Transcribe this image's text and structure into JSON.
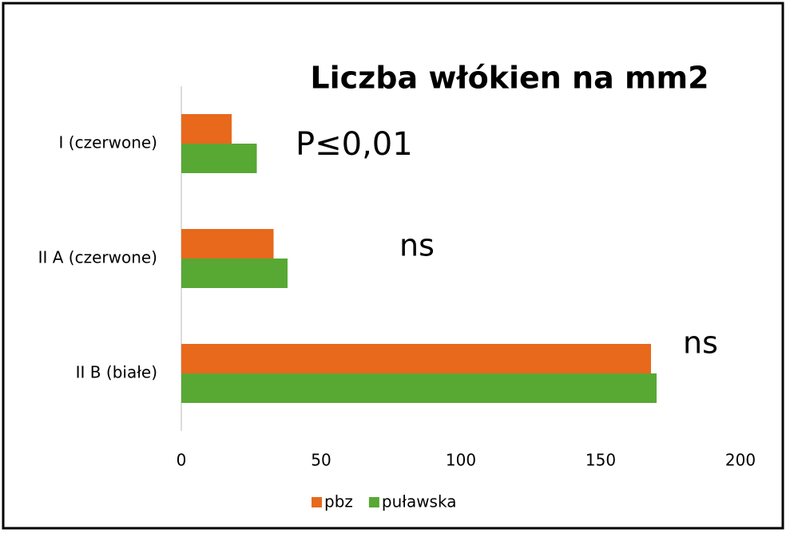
{
  "chart_data": {
    "type": "hbar",
    "title": "Liczba włókien na mm2",
    "categories": [
      "I (czerwone)",
      "II A (czerwone)",
      "II B (białe)"
    ],
    "series": [
      {
        "name": "pbz",
        "color": "#e8681c",
        "values": [
          18,
          33,
          168
        ]
      },
      {
        "name": "puławska",
        "color": "#58a834",
        "values": [
          27,
          38,
          170
        ]
      }
    ],
    "xlim": [
      0,
      200
    ],
    "xticks": [
      0,
      50,
      100,
      150,
      200
    ],
    "grid": false,
    "legend": "bottom",
    "annotations": [
      "P≤0,01",
      "ns",
      "ns"
    ]
  }
}
